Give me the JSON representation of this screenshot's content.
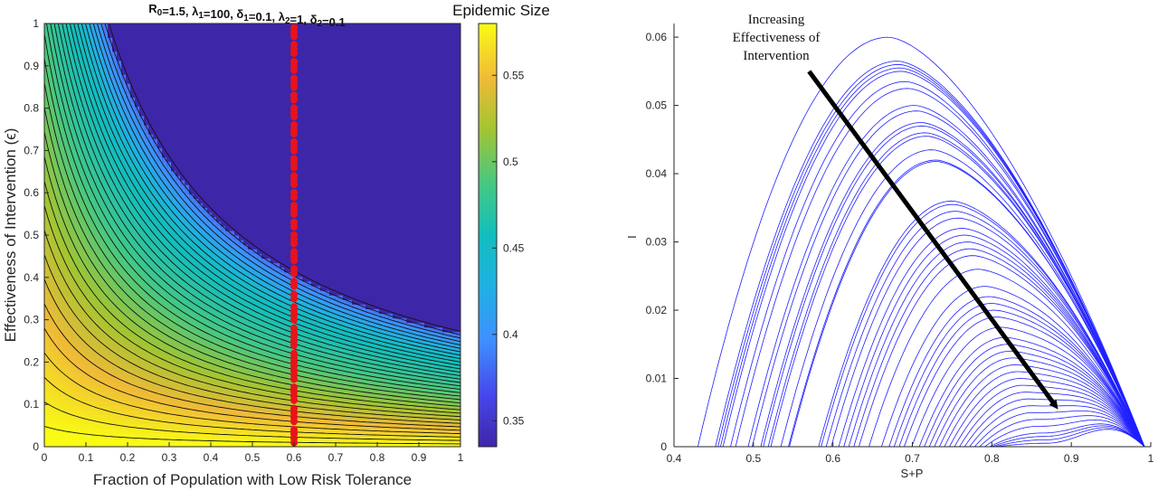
{
  "chart_data": [
    {
      "type": "heatmap",
      "title_parts": [
        {
          "t": "R",
          "s": false
        },
        {
          "t": "0",
          "s": true
        },
        {
          "t": "=1.5, λ",
          "s": false
        },
        {
          "t": "1",
          "s": true
        },
        {
          "t": "=100, δ",
          "s": false
        },
        {
          "t": "1",
          "s": true
        },
        {
          "t": "=0.1, λ",
          "s": false
        },
        {
          "t": "2",
          "s": true
        },
        {
          "t": "=1, δ",
          "s": false
        },
        {
          "t": "2",
          "s": true
        },
        {
          "t": "=0.1",
          "s": false
        }
      ],
      "xlabel": "Fraction of Population with Low Risk Tolerance",
      "ylabel": "Effectiveness of Intervention (ϵ)",
      "xlim": [
        0,
        1
      ],
      "ylim": [
        0,
        1
      ],
      "xticks": [
        "0",
        "0.1",
        "0.2",
        "0.3",
        "0.4",
        "0.5",
        "0.6",
        "0.7",
        "0.8",
        "0.9",
        "1"
      ],
      "yticks": [
        "0",
        "0.1",
        "0.2",
        "0.3",
        "0.4",
        "0.5",
        "0.6",
        "0.7",
        "0.8",
        "0.9",
        "1"
      ],
      "colorbar": {
        "title": "Epidemic Size",
        "range": [
          0.335,
          0.58
        ],
        "ticks": [
          "0.35",
          "0.4",
          "0.45",
          "0.5",
          "0.55"
        ],
        "tick_values": [
          0.35,
          0.4,
          0.45,
          0.5,
          0.55
        ],
        "colormap": "parula"
      },
      "overlay_points": {
        "color": "#e8131b",
        "x": 0.6,
        "y": [
          0.01,
          0.02,
          0.03,
          0.04,
          0.06,
          0.07,
          0.08,
          0.09,
          0.11,
          0.12,
          0.13,
          0.14,
          0.16,
          0.17,
          0.18,
          0.19,
          0.2,
          0.21,
          0.22,
          0.24,
          0.25,
          0.26,
          0.27,
          0.28,
          0.3,
          0.31,
          0.32,
          0.33,
          0.35,
          0.36,
          0.38,
          0.39,
          0.41,
          0.42,
          0.44,
          0.45,
          0.46,
          0.48,
          0.49,
          0.5,
          0.52,
          0.53,
          0.55,
          0.56,
          0.57,
          0.59,
          0.6,
          0.62,
          0.63,
          0.64,
          0.66,
          0.67,
          0.68,
          0.7,
          0.71,
          0.72,
          0.74,
          0.75,
          0.76,
          0.78,
          0.79,
          0.8,
          0.82,
          0.83,
          0.85,
          0.86,
          0.87,
          0.89,
          0.9,
          0.91,
          0.93,
          0.94,
          0.95,
          0.97,
          0.98,
          0.99
        ]
      }
    },
    {
      "type": "line",
      "xlabel": "S+P",
      "ylabel": "I",
      "xlim": [
        0.4,
        1
      ],
      "ylim": [
        0,
        0.062
      ],
      "xticks": [
        "0.4",
        "0.5",
        "0.6",
        "0.7",
        "0.8",
        "0.9",
        "1"
      ],
      "yticks": [
        "0",
        "0.01",
        "0.02",
        "0.03",
        "0.04",
        "0.05",
        "0.06"
      ],
      "line_color": "#1f1fff",
      "curve_peaks": [
        0.06,
        0.0565,
        0.056,
        0.0555,
        0.055,
        0.0535,
        0.0525,
        0.05,
        0.0492,
        0.0475,
        0.047,
        0.046,
        0.0455,
        0.0435,
        0.042,
        0.0418,
        0.036,
        0.0355,
        0.0345,
        0.0335,
        0.032,
        0.031,
        0.03,
        0.029,
        0.028,
        0.026,
        0.0235,
        0.022,
        0.021,
        0.02,
        0.019,
        0.0175,
        0.016,
        0.015,
        0.014,
        0.013,
        0.012,
        0.011,
        0.01,
        0.009,
        0.008,
        0.007,
        0.006,
        0.005,
        0.004,
        0.003,
        0.002,
        0.0015,
        0.001,
        0.0005
      ],
      "annotation": {
        "lines": [
          "Increasing",
          "Effectiveness of",
          "Intervention"
        ],
        "arrow_from": [
          0.57,
          0.055
        ],
        "arrow_to": [
          0.88,
          0.006
        ]
      }
    }
  ]
}
